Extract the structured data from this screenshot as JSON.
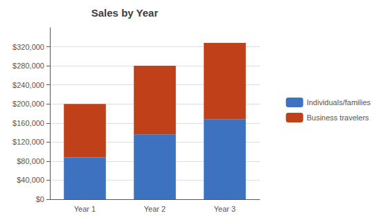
{
  "chart_data": {
    "type": "bar",
    "title": "Sales by Year",
    "categories": [
      "Year 1",
      "Year 2",
      "Year 3"
    ],
    "series": [
      {
        "name": "Individuals/families",
        "color": "#3C72C0",
        "values": [
          88000,
          136000,
          168000
        ]
      },
      {
        "name": "Business travelers",
        "color": "#C0401A",
        "values": [
          112000,
          144000,
          160000
        ]
      }
    ],
    "stacked": true,
    "ylim": [
      0,
      360000
    ],
    "yticks": [
      {
        "value": 0,
        "label": "$0"
      },
      {
        "value": 40000,
        "label": "$40,000"
      },
      {
        "value": 80000,
        "label": "$80,000"
      },
      {
        "value": 120000,
        "label": "$120,000"
      },
      {
        "value": 160000,
        "label": "$160,000"
      },
      {
        "value": 200000,
        "label": "$200,000"
      },
      {
        "value": 240000,
        "label": "$240,000"
      },
      {
        "value": 280000,
        "label": "$280,000"
      },
      {
        "value": 320000,
        "label": "$320,000"
      }
    ],
    "grid": true,
    "legend": "right"
  }
}
